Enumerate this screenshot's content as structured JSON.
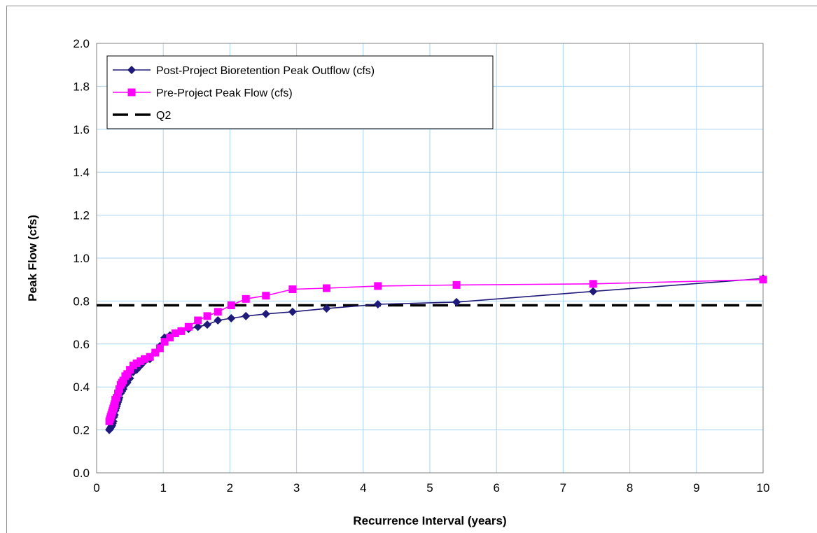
{
  "chart_data": {
    "type": "line",
    "xlabel": "Recurrence Interval (years)",
    "ylabel": "Peak Flow (cfs)",
    "xlim": [
      0,
      10
    ],
    "ylim": [
      0,
      2.0
    ],
    "x_ticks": [
      "0",
      "1",
      "2",
      "3",
      "4",
      "5",
      "6",
      "7",
      "8",
      "9",
      "10"
    ],
    "y_ticks": [
      "0.0",
      "0.2",
      "0.4",
      "0.6",
      "0.8",
      "1.0",
      "1.2",
      "1.4",
      "1.6",
      "1.8",
      "2.0"
    ],
    "grid": true,
    "legend_position": "top-left",
    "series": [
      {
        "name": "Post-Project Bioretention Peak Outflow (cfs)",
        "color": "#1f1a7a",
        "marker": "diamond",
        "x": [
          0.19,
          0.2,
          0.21,
          0.22,
          0.23,
          0.24,
          0.25,
          0.26,
          0.27,
          0.28,
          0.29,
          0.3,
          0.31,
          0.32,
          0.33,
          0.34,
          0.36,
          0.38,
          0.4,
          0.43,
          0.46,
          0.5,
          0.55,
          0.6,
          0.66,
          0.72,
          0.8,
          0.88,
          0.95,
          1.02,
          1.1,
          1.18,
          1.27,
          1.38,
          1.52,
          1.66,
          1.82,
          2.02,
          2.24,
          2.54,
          2.94,
          3.45,
          4.22,
          5.4,
          7.45,
          10.0
        ],
        "y": [
          0.2,
          0.205,
          0.21,
          0.215,
          0.22,
          0.23,
          0.24,
          0.26,
          0.27,
          0.29,
          0.3,
          0.31,
          0.32,
          0.33,
          0.34,
          0.35,
          0.37,
          0.38,
          0.39,
          0.41,
          0.42,
          0.44,
          0.47,
          0.48,
          0.5,
          0.52,
          0.53,
          0.56,
          0.59,
          0.63,
          0.64,
          0.65,
          0.66,
          0.67,
          0.68,
          0.69,
          0.71,
          0.72,
          0.73,
          0.74,
          0.75,
          0.765,
          0.785,
          0.795,
          0.845,
          0.905
        ]
      },
      {
        "name": "Pre-Project Peak Flow (cfs)",
        "color": "#ff00ff",
        "marker": "square",
        "x": [
          0.19,
          0.2,
          0.21,
          0.22,
          0.23,
          0.24,
          0.25,
          0.26,
          0.27,
          0.28,
          0.3,
          0.32,
          0.34,
          0.36,
          0.38,
          0.4,
          0.43,
          0.46,
          0.5,
          0.55,
          0.6,
          0.66,
          0.72,
          0.8,
          0.88,
          0.95,
          1.02,
          1.1,
          1.18,
          1.27,
          1.38,
          1.52,
          1.66,
          1.82,
          2.02,
          2.24,
          2.54,
          2.94,
          3.45,
          4.22,
          5.4,
          7.45,
          10.0
        ],
        "y": [
          0.24,
          0.25,
          0.26,
          0.27,
          0.28,
          0.29,
          0.3,
          0.31,
          0.32,
          0.34,
          0.35,
          0.37,
          0.39,
          0.41,
          0.42,
          0.43,
          0.45,
          0.46,
          0.48,
          0.5,
          0.51,
          0.52,
          0.53,
          0.54,
          0.56,
          0.58,
          0.61,
          0.63,
          0.65,
          0.66,
          0.68,
          0.71,
          0.73,
          0.75,
          0.78,
          0.81,
          0.825,
          0.855,
          0.86,
          0.87,
          0.875,
          0.88,
          0.9
        ]
      },
      {
        "name": "Q2",
        "color": "#000000",
        "style": "dashed",
        "x": [
          0,
          10
        ],
        "y": [
          0.78,
          0.78
        ]
      }
    ]
  }
}
